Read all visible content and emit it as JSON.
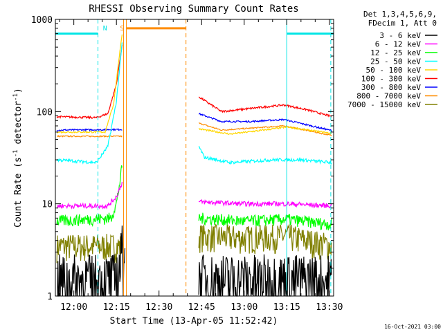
{
  "chart_data": {
    "type": "line",
    "title": "RHESSI Observing Summary Count Rates",
    "xlabel": "Start Time (13-Apr-05 11:52:42)",
    "ylabel": "Count Rate (s⁻¹ detector⁻¹)",
    "ylabel_parts": {
      "a": "Count Rate (s",
      "b": "-1",
      "c": " detector",
      "d": "-1",
      "e": ")"
    },
    "yscale": "log",
    "ylim": [
      1,
      1000
    ],
    "y_ticks": [
      {
        "v": 1,
        "label": "1"
      },
      {
        "v": 10,
        "label": "10"
      },
      {
        "v": 100,
        "label": "100"
      },
      {
        "v": 1000,
        "label": "1000"
      }
    ],
    "xlim_min": [
      -6.5,
      91.5
    ],
    "x_ticks": [
      {
        "v": 0,
        "label": "12:00"
      },
      {
        "v": 15,
        "label": "12:15"
      },
      {
        "v": 30,
        "label": "12:30"
      },
      {
        "v": 45,
        "label": "12:45"
      },
      {
        "v": 60,
        "label": "13:00"
      },
      {
        "v": 75,
        "label": "13:15"
      },
      {
        "v": 90,
        "label": "13:30"
      }
    ],
    "legend_header": [
      "Det 1,3,4,5,6,9,",
      "FDecim 1, Att 0"
    ],
    "legend_placement": "right",
    "footer_date": "16-Oct-2021 03:00",
    "data_gap_min": [
      18.5,
      43.5
    ],
    "markers": [
      {
        "label": "N",
        "x_min": 11,
        "color": "#00e5e5"
      },
      {
        "label": "S",
        "x_min": 17,
        "color": "#ff8c00"
      }
    ],
    "vlines": [
      {
        "x_min": 8.5,
        "color": "#00e5e5",
        "dashed": true
      },
      {
        "x_min": 17.5,
        "color": "#ff8c00",
        "dashed": false
      },
      {
        "x_min": 18.5,
        "color": "#ff8c00",
        "dashed": false
      },
      {
        "x_min": 39.5,
        "color": "#ff8c00",
        "dashed": true
      },
      {
        "x_min": 75,
        "color": "#00e5e5",
        "dashed": false
      },
      {
        "x_min": 90.5,
        "color": "#00e5e5",
        "dashed": true
      }
    ],
    "night_bars": [
      {
        "x_range": [
          -6.5,
          8.5
        ],
        "y": 700,
        "color": "#00e5e5"
      },
      {
        "x_range": [
          75,
          91.5
        ],
        "y": 700,
        "color": "#00e5e5"
      },
      {
        "x_range": [
          18.5,
          39.5
        ],
        "y": 800,
        "color": "#ff8c00"
      }
    ],
    "series": [
      {
        "name": "3 - 6 keV",
        "color": "#000000",
        "noise": 0.9,
        "pts": [
          [
            -6,
            1.5
          ],
          [
            14,
            1.5
          ],
          [
            16,
            2
          ],
          [
            18,
            5
          ]
        ],
        "pts2": [
          [
            44,
            1.5
          ],
          [
            91,
            1.5
          ]
        ]
      },
      {
        "name": "6 - 12 keV",
        "color": "#ff00ff",
        "noise": 0.06,
        "pts": [
          [
            -6,
            9.5
          ],
          [
            12,
            9.5
          ],
          [
            15,
            12
          ],
          [
            17,
            17
          ]
        ],
        "pts2": [
          [
            44,
            10.5
          ],
          [
            60,
            10
          ],
          [
            75,
            10
          ],
          [
            91,
            9.5
          ]
        ]
      },
      {
        "name": "12 - 25 keV",
        "color": "#00ff00",
        "noise": 0.15,
        "pts": [
          [
            -6,
            6.5
          ],
          [
            13,
            7
          ],
          [
            15,
            10
          ],
          [
            17,
            25
          ]
        ],
        "pts2": [
          [
            44,
            7
          ],
          [
            60,
            6.5
          ],
          [
            75,
            6.8
          ],
          [
            91,
            6
          ]
        ]
      },
      {
        "name": "25 - 50 keV",
        "color": "#00ffff",
        "noise": 0.04,
        "pts": [
          [
            -6,
            30
          ],
          [
            8,
            28
          ],
          [
            12,
            42
          ],
          [
            15,
            130
          ],
          [
            17,
            550
          ]
        ],
        "pts2": [
          [
            44,
            42
          ],
          [
            46,
            32
          ],
          [
            55,
            28
          ],
          [
            70,
            30
          ],
          [
            80,
            30
          ],
          [
            91,
            28
          ]
        ]
      },
      {
        "name": "50 - 100 keV",
        "color": "#ffd700",
        "noise": 0.02,
        "pts": [
          [
            -6,
            60
          ],
          [
            11,
            60
          ],
          [
            14,
            120
          ],
          [
            16,
            400
          ],
          [
            17,
            700
          ]
        ],
        "pts2": [
          [
            44,
            65
          ],
          [
            55,
            57
          ],
          [
            65,
            62
          ],
          [
            75,
            68
          ],
          [
            91,
            58
          ]
        ]
      },
      {
        "name": "100 - 300 keV",
        "color": "#ff0000",
        "noise": 0.025,
        "pts": [
          [
            -6,
            88
          ],
          [
            8,
            86
          ],
          [
            12,
            95
          ],
          [
            15,
            200
          ],
          [
            17,
            520
          ]
        ],
        "pts2": [
          [
            44,
            145
          ],
          [
            52,
            100
          ],
          [
            62,
            108
          ],
          [
            74,
            118
          ],
          [
            82,
            105
          ],
          [
            91,
            88
          ]
        ]
      },
      {
        "name": "300 - 800 keV",
        "color": "#0000ff",
        "noise": 0.02,
        "pts": [
          [
            -6,
            63
          ],
          [
            17,
            64
          ]
        ],
        "pts2": [
          [
            44,
            95
          ],
          [
            52,
            78
          ],
          [
            62,
            78
          ],
          [
            74,
            82
          ],
          [
            91,
            62
          ]
        ]
      },
      {
        "name": "800 - 7000 keV",
        "color": "#ff8c00",
        "noise": 0.015,
        "pts": [
          [
            -6,
            54
          ],
          [
            17,
            54
          ]
        ],
        "pts2": [
          [
            44,
            75
          ],
          [
            52,
            63
          ],
          [
            62,
            66
          ],
          [
            74,
            70
          ],
          [
            91,
            55
          ]
        ]
      },
      {
        "name": "7000 - 15000 keV",
        "color": "#808000",
        "noise": 0.35,
        "pts": [
          [
            -6,
            3.5
          ],
          [
            17,
            3.5
          ]
        ],
        "pts2": [
          [
            44,
            4.5
          ],
          [
            60,
            4.3
          ],
          [
            75,
            4.5
          ],
          [
            91,
            3.5
          ]
        ]
      }
    ]
  }
}
